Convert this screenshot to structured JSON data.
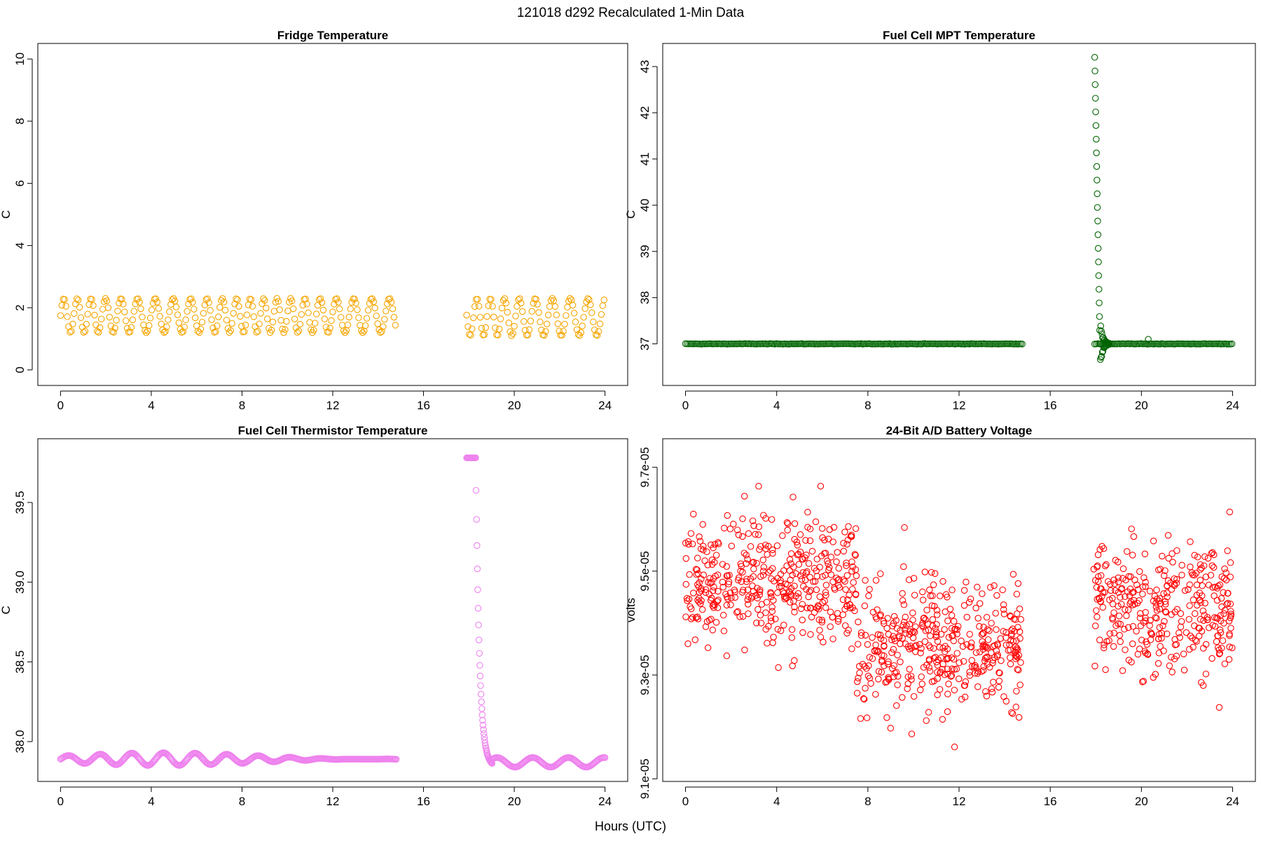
{
  "figure": {
    "title": "121018   d292   Recalculated 1-Min Data",
    "xlabel": "Hours (UTC)"
  },
  "chart_data": [
    {
      "type": "scatter",
      "title": "Fridge Temperature",
      "xlabel": "Hours (UTC)",
      "ylabel": "C",
      "xlim": [
        -1,
        25
      ],
      "ylim": [
        -0.5,
        10.5
      ],
      "xticks": [
        0,
        4,
        8,
        12,
        16,
        20,
        24
      ],
      "yticks": [
        0,
        2,
        4,
        6,
        8,
        10
      ],
      "ytick_labels": [
        "0",
        "2",
        "4",
        "6",
        "8",
        "10"
      ],
      "color": "#f5a500",
      "data_gap": [
        14.8,
        17.9
      ],
      "series": [
        {
          "name": "fridge",
          "description": "oscillating band",
          "segments": [
            {
              "x_range": [
                0,
                14.8
              ],
              "y_min": 1.2,
              "y_max": 2.3
            },
            {
              "x_range": [
                17.9,
                24
              ],
              "y_min": 1.1,
              "y_max": 2.3
            }
          ]
        }
      ]
    },
    {
      "type": "scatter",
      "title": "Fuel Cell MPT Temperature",
      "xlabel": "Hours (UTC)",
      "ylabel": "C",
      "xlim": [
        -1,
        25
      ],
      "ylim": [
        36.1,
        43.5
      ],
      "xticks": [
        0,
        4,
        8,
        12,
        16,
        20,
        24
      ],
      "yticks": [
        37,
        38,
        39,
        40,
        41,
        42,
        43
      ],
      "ytick_labels": [
        "37",
        "38",
        "39",
        "40",
        "41",
        "42",
        "43"
      ],
      "color": "#006400",
      "baseline": 37.0,
      "spike": {
        "start_x": 17.95,
        "peak": 43.2,
        "end_x": 18.6,
        "min": 36.45
      },
      "outlier": {
        "x": 20.3,
        "y": 37.1
      },
      "series": [
        {
          "name": "mpt",
          "segments": [
            {
              "x_range": [
                0,
                14.8
              ],
              "y": 37.0
            },
            {
              "x_range": [
                17.95,
                24
              ],
              "y": 37.0
            }
          ]
        }
      ]
    },
    {
      "type": "scatter",
      "title": "Fuel Cell Thermistor Temperature",
      "xlabel": "Hours (UTC)",
      "ylabel": "C",
      "xlim": [
        -1,
        25
      ],
      "ylim": [
        37.75,
        39.9
      ],
      "xticks": [
        0,
        4,
        8,
        12,
        16,
        20,
        24
      ],
      "yticks": [
        38.0,
        38.5,
        39.0,
        39.5
      ],
      "ytick_labels": [
        "38.0",
        "38.5",
        "39.0",
        "39.5"
      ],
      "color": "#ee82ee",
      "baseline": 37.89,
      "plateau": {
        "x_range": [
          17.9,
          18.3
        ],
        "y": 39.78
      },
      "decay_to": {
        "x": 19.0,
        "y": 37.84
      },
      "series": [
        {
          "name": "thermistor",
          "segments": [
            {
              "x_range": [
                0,
                14.8
              ],
              "y_center": 37.89,
              "amplitude": 0.02
            },
            {
              "x_range": [
                17.9,
                24
              ],
              "y_center": 37.87,
              "amplitude": 0.03
            }
          ]
        }
      ]
    },
    {
      "type": "scatter",
      "title": "24-Bit A/D Battery Voltage",
      "xlabel": "Hours (UTC)",
      "ylabel": "volts",
      "xlim": [
        -1,
        25
      ],
      "ylim": [
        9.095e-05,
        9.755e-05
      ],
      "xticks": [
        0,
        4,
        8,
        12,
        16,
        20,
        24
      ],
      "yticks": [
        9.1e-05,
        9.3e-05,
        9.5e-05,
        9.7e-05
      ],
      "ytick_labels": [
        "9.1e-05",
        "9.3e-05",
        "9.5e-05",
        "9.7e-05"
      ],
      "color": "#ff0000",
      "series": [
        {
          "name": "voltage",
          "description": "noisy scatter",
          "segments": [
            {
              "x_range": [
                0,
                7.5
              ],
              "y_center": 9.48e-05,
              "spread": 1e-06
            },
            {
              "x_range": [
                7.5,
                14.8
              ],
              "y_center": 9.36e-05,
              "spread": 1e-06
            },
            {
              "x_range": [
                17.9,
                24
              ],
              "y_center": 9.43e-05,
              "spread": 1e-06
            }
          ]
        }
      ]
    }
  ]
}
